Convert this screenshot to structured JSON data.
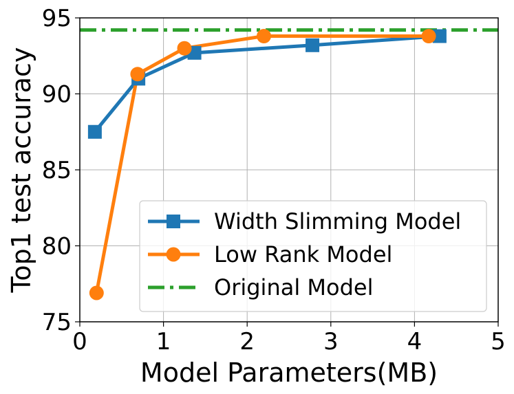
{
  "chart_data": {
    "type": "line",
    "xlabel": "Model Parameters(MB)",
    "ylabel": "Top1 test accuracy",
    "xlim": [
      0,
      5
    ],
    "ylim": [
      75,
      95
    ],
    "xticks": [
      0,
      1,
      2,
      3,
      4,
      5
    ],
    "yticks": [
      75,
      80,
      85,
      90,
      95
    ],
    "xtick_labels": [
      "0",
      "1",
      "2",
      "3",
      "4",
      "5"
    ],
    "ytick_labels": [
      "75",
      "80",
      "85",
      "90",
      "95"
    ],
    "grid": true,
    "legend_position": "lower-right",
    "series": [
      {
        "name": "Width Slimming Model",
        "color": "#1f77b4",
        "marker": "square",
        "x": [
          0.18,
          0.7,
          1.37,
          2.78,
          4.3
        ],
        "y": [
          87.5,
          91.0,
          92.7,
          93.2,
          93.8
        ]
      },
      {
        "name": "Low Rank Model",
        "color": "#ff7f0e",
        "marker": "circle",
        "x": [
          0.2,
          0.69,
          1.25,
          2.2,
          4.17
        ],
        "y": [
          76.9,
          91.3,
          93.0,
          93.8,
          93.8
        ]
      },
      {
        "name": "Original Model",
        "color": "#2ca02c",
        "style": "dash-dot",
        "y_constant": 94.2
      }
    ]
  }
}
